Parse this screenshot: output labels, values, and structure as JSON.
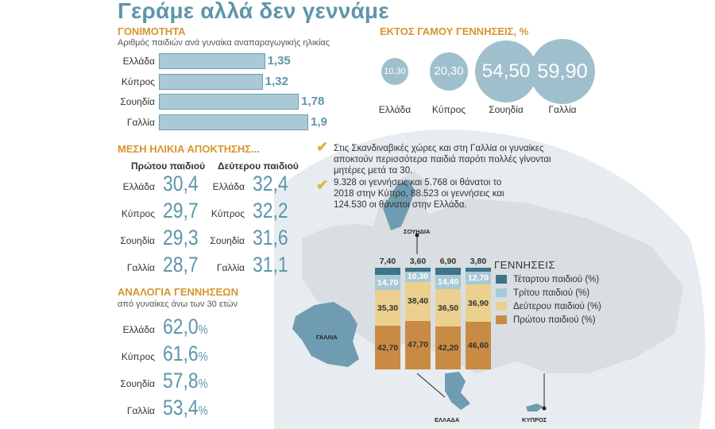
{
  "title": "Γεράμε αλλά δεν γεννάμε",
  "colors": {
    "accent_blue": "#5e95ab",
    "accent_orange": "#d6952e",
    "seg_fourth": "#3d7488",
    "seg_third": "#a9c9d6",
    "seg_second": "#ecd08f",
    "seg_first": "#c98b44"
  },
  "fertility": {
    "heading": "ΓΟΝΙΜΟΤΗΤΑ",
    "subheading": "Αριθμός παιδιών ανά γυναίκα αναπαραγωγικής ηλικίας"
  },
  "births_outside": {
    "heading": "ΕΚΤΟΣ ΓΑΜΟΥ ΓΕΝΝΗΣΕΙΣ, %"
  },
  "mean_age": {
    "heading": "ΜΕΣΗ ΗΛΙΚΙΑ ΑΠΟΚΤΗΣΗΣ...",
    "col1": "Πρώτου παιδιού",
    "col2": "Δεύτερου παιδιού"
  },
  "ratio_births": {
    "heading": "ΑΝΑΛΟΓΙΑ ΓΕΝΝΗΣΕΩΝ",
    "subheading": "από γυναίκες άνω των 30 ετών"
  },
  "notes": [
    "Στις Σκανδιναβικές χώρες και στη Γαλλία οι γυναίκες αποκτούν περισσότερα παιδιά παρότι πολλές γίνονται μητέρες μετά τα 30.",
    "9.328 οι γεννήσεις και 5.768 οι θάνατοι το 2018 στην Κύπρο, 88.523 οι γεννήσεις και 124.530 οι θάνατοι στην Ελλάδα."
  ],
  "map_labels": {
    "sweden": "ΣΟΥΗΔΙΑ",
    "france": "ΓΑΛΛΙΑ",
    "greece": "ΕΛΛΑΔΑ",
    "cyprus": "ΚΥΠΡΟΣ"
  },
  "percent_sign": "%",
  "chart_data": [
    {
      "type": "bar",
      "orientation": "horizontal",
      "title": "ΓΟΝΙΜΟΤΗΤΑ",
      "subtitle": "Αριθμός παιδιών ανά γυναίκα αναπαραγωγικής ηλικίας",
      "categories": [
        "Ελλάδα",
        "Κύπρος",
        "Σουηδία",
        "Γαλλία"
      ],
      "values": [
        1.35,
        1.32,
        1.78,
        1.9
      ],
      "value_labels": [
        "1,35",
        "1,32",
        "1,78",
        "1,9"
      ],
      "xlim": [
        0,
        1.9
      ]
    },
    {
      "type": "bubble",
      "title": "ΕΚΤΟΣ ΓΑΜΟΥ ΓΕΝΝΗΣΕΙΣ, %",
      "categories": [
        "Ελλάδα",
        "Κύπρος",
        "Σουηδία",
        "Γαλλία"
      ],
      "values": [
        10.3,
        20.3,
        54.5,
        59.9
      ],
      "value_labels": [
        "10,30",
        "20,30",
        "54,50",
        "59,90"
      ]
    },
    {
      "type": "table",
      "title": "ΜΕΣΗ ΗΛΙΚΙΑ ΑΠΟΚΤΗΣΗΣ...",
      "columns": [
        "Πρώτου παιδιού",
        "Δεύτερου παιδιού"
      ],
      "rows": [
        {
          "country": "Ελλάδα",
          "first": "30,4",
          "second": "32,4"
        },
        {
          "country": "Κύπρος",
          "first": "29,7",
          "second": "32,2"
        },
        {
          "country": "Σουηδία",
          "first": "29,3",
          "second": "31,6"
        },
        {
          "country": "Γαλλία",
          "first": "28,7",
          "second": "31,1"
        }
      ]
    },
    {
      "type": "table",
      "title": "ΑΝΑΛΟΓΙΑ ΓΕΝΝΗΣΕΩΝ",
      "subtitle": "από γυναίκες άνω των 30 ετών",
      "rows": [
        {
          "country": "Ελλάδα",
          "value": "62,0"
        },
        {
          "country": "Κύπρος",
          "value": "61,6"
        },
        {
          "country": "Σουηδία",
          "value": "57,8"
        },
        {
          "country": "Γαλλία",
          "value": "53,4"
        }
      ]
    },
    {
      "type": "bar",
      "stacked": true,
      "title": "ΓΕΝΝΗΣΕΙΣ",
      "categories": [
        "Γαλλία",
        "Ελλάδα",
        "Κύπρος",
        "Σουηδία"
      ],
      "legend_position": "right",
      "series": [
        {
          "name": "Τέταρτου παιδιού (%)",
          "values": [
            7.4,
            3.6,
            6.9,
            3.8
          ],
          "labels": [
            "7,40",
            "3,60",
            "6,90",
            "3,80"
          ]
        },
        {
          "name": "Τρίτου παιδιού (%)",
          "values": [
            14.7,
            10.3,
            14.4,
            12.7
          ],
          "labels": [
            "14,70",
            "10,30",
            "14,40",
            "12,70"
          ]
        },
        {
          "name": "Δεύτερου παιδιού (%)",
          "values": [
            35.3,
            38.4,
            36.5,
            36.9
          ],
          "labels": [
            "35,30",
            "38,40",
            "36,50",
            "36,90"
          ]
        },
        {
          "name": "Πρώτου παιδιού (%)",
          "values": [
            42.7,
            47.7,
            42.2,
            46.6
          ],
          "labels": [
            "42,70",
            "47,70",
            "42,20",
            "46,60"
          ]
        }
      ]
    }
  ]
}
